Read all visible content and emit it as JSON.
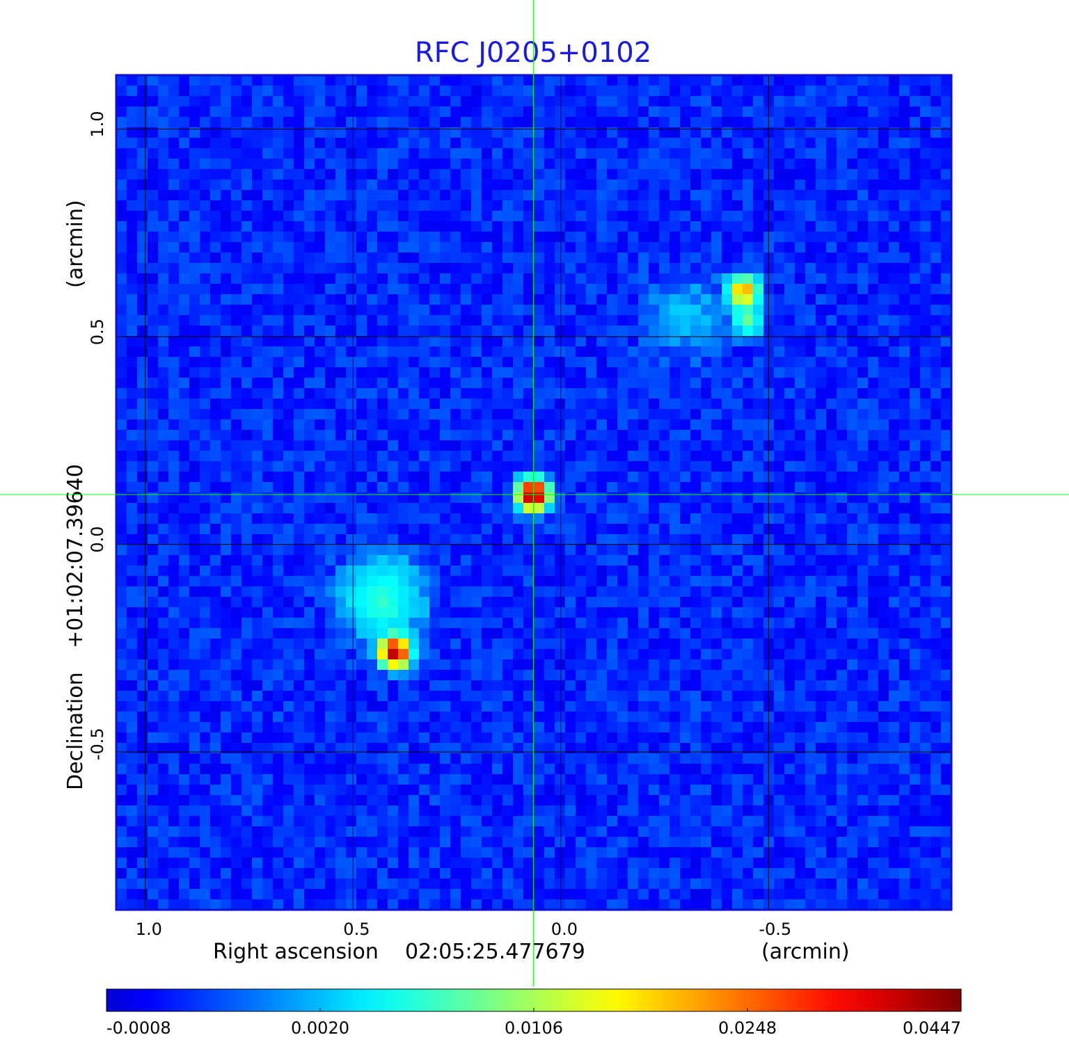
{
  "chart_data": {
    "type": "heatmap",
    "title": "RFC J0205+0102",
    "xlabel": {
      "prefix": "Right ascension",
      "value": "02:05:25.477679",
      "unit": "(arcmin)"
    },
    "ylabel": {
      "prefix": "Declination",
      "value": "+01:02:07.39640",
      "unit": "(arcmin)"
    },
    "xlim": [
      1.07,
      -0.94
    ],
    "ylim": [
      -0.88,
      1.13
    ],
    "x_ticks": [
      1.0,
      0.5,
      0.0,
      -0.5
    ],
    "x_tick_labels": [
      "1.0",
      "0.5",
      "0.0",
      "-0.5"
    ],
    "y_ticks": [
      -0.5,
      0.0,
      0.5,
      1.0
    ],
    "y_tick_labels": [
      "-0.5",
      "0.0",
      "0.5",
      "1.0"
    ],
    "grid": true,
    "colormap": "jet",
    "colorbar": {
      "orientation": "horizontal",
      "position": "bottom",
      "tick_labels": [
        "-0.0008",
        "0.0020",
        "0.0106",
        "0.0248",
        "0.0447"
      ]
    },
    "crosshair": {
      "x": 0.066,
      "y": 0.12,
      "color": "#00ff00"
    },
    "sources": [
      {
        "x": 0.066,
        "y": 0.12,
        "peak": 0.0447,
        "shape": "compact"
      },
      {
        "x": 0.4,
        "y": -0.26,
        "peak": 0.04,
        "shape": "compact"
      },
      {
        "x": 0.43,
        "y": -0.13,
        "peak": 0.006,
        "shape": "extended"
      },
      {
        "x": -0.44,
        "y": 0.61,
        "peak": 0.022,
        "shape": "compact"
      },
      {
        "x": -0.45,
        "y": 0.54,
        "peak": 0.008,
        "shape": "compact"
      },
      {
        "x": -0.3,
        "y": 0.55,
        "peak": 0.002,
        "shape": "extended"
      }
    ],
    "noise_level": 0.0008,
    "colors": {
      "title": "#1a1ae0",
      "frame": "#1010d0",
      "grid": "#000000",
      "crosshair": "#00ff00"
    }
  }
}
